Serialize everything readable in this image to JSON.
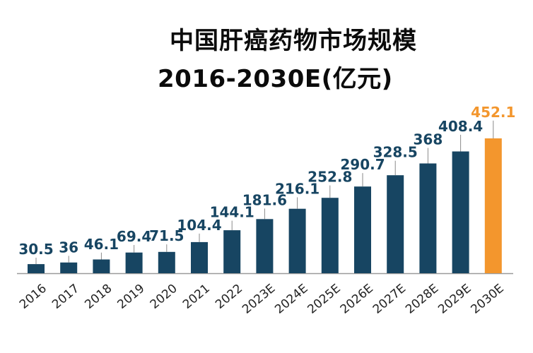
{
  "chart_data": {
    "type": "bar",
    "title": "中国肝癌药物市场规模",
    "subtitle": "2016-2030E(亿元)",
    "categories": [
      "2016",
      "2017",
      "2018",
      "2019",
      "2020",
      "2021",
      "2022",
      "2023E",
      "2024E",
      "2025E",
      "2026E",
      "2027E",
      "2028E",
      "2029E",
      "2030E"
    ],
    "values": [
      30.5,
      36,
      46.1,
      69.4,
      71.5,
      104.4,
      144.1,
      181.6,
      216.1,
      252.8,
      290.7,
      328.5,
      368,
      408.4,
      452.1
    ],
    "value_labels": [
      "30.5",
      "36",
      "46.1",
      "69.4",
      "71.5",
      "104.4",
      "144.1",
      "181.6",
      "216.1",
      "252.8",
      "290.7",
      "328.5",
      "368",
      "408.4",
      "452.1"
    ],
    "ylim": [
      0,
      460
    ],
    "grid": false,
    "colors": {
      "bar": "#174562",
      "highlight": "#f3962d",
      "leader": "#8a8a8a",
      "axis": "#9a9a9a"
    },
    "highlight_index": 14
  }
}
